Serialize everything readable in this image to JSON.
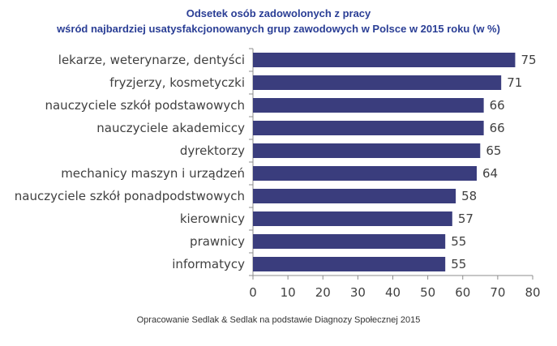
{
  "chart_data": {
    "type": "bar",
    "orientation": "horizontal",
    "title": "Odsetek osób zadowolonych z pracy",
    "subtitle": "wśród najbardziej usatysfakcjonowanych grup zawodowych w Polsce w 2015 roku (w %)",
    "categories": [
      "lekarze, weterynarze, dentyści",
      "fryzjerzy, kosmetyczki",
      "nauczyciele szkół podstawowych",
      "nauczyciele akademiccy",
      "dyrektorzy",
      "mechanicy maszyn i urządzeń",
      "nauczyciele szkół ponadpodstwowych",
      "kierownicy",
      "prawnicy",
      "informatycy"
    ],
    "values": [
      75,
      71,
      66,
      66,
      65,
      64,
      58,
      57,
      55,
      55
    ],
    "xlim": [
      0,
      80
    ],
    "xticks": [
      0,
      10,
      20,
      30,
      40,
      50,
      60,
      70,
      80
    ],
    "bar_color": "#3a3d7d",
    "title_color": "#2a3e95",
    "grid": false,
    "legend": "none"
  },
  "source": "Opracowanie Sedlak & Sedlak na podstawie Diagnozy Społecznej 2015"
}
